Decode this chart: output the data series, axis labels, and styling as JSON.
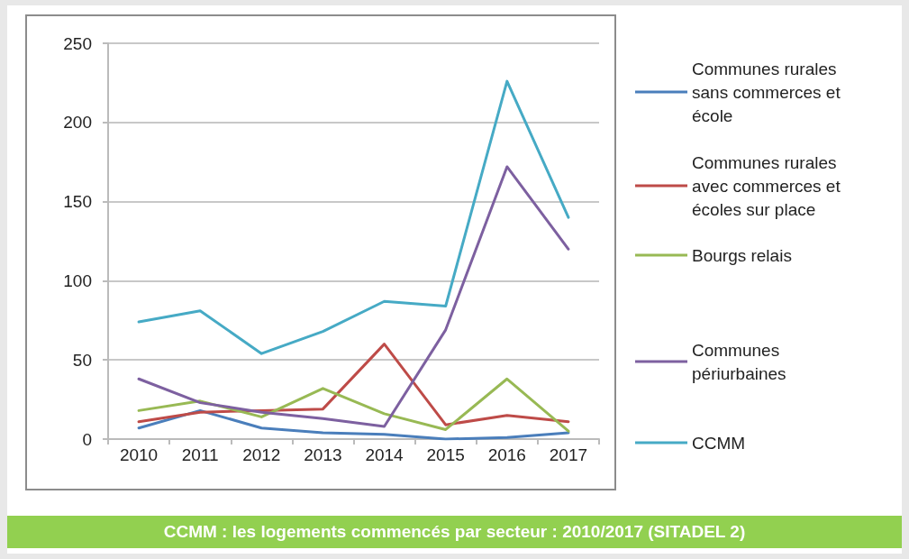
{
  "chart_data": {
    "type": "line",
    "categories": [
      "2010",
      "2011",
      "2012",
      "2013",
      "2014",
      "2015",
      "2016",
      "2017"
    ],
    "series": [
      {
        "name": "Communes rurales sans commerces et école",
        "color": "#4a7ebb",
        "values": [
          7,
          18,
          7,
          4,
          3,
          0,
          1,
          4
        ]
      },
      {
        "name": "Communes rurales avec commerces et écoles sur place",
        "color": "#be4b48",
        "values": [
          11,
          17,
          18,
          19,
          60,
          9,
          15,
          11
        ]
      },
      {
        "name": "Bourgs relais",
        "color": "#98b954",
        "values": [
          18,
          24,
          14,
          32,
          16,
          6,
          38,
          5
        ]
      },
      {
        "name": "Communes périurbaines",
        "color": "#7d60a0",
        "values": [
          38,
          23,
          17,
          13,
          8,
          69,
          172,
          120
        ]
      },
      {
        "name": "CCMM",
        "color": "#46aac5",
        "values": [
          74,
          81,
          54,
          68,
          87,
          84,
          226,
          140
        ]
      }
    ],
    "ylim": [
      0,
      250
    ],
    "yticks": [
      0,
      50,
      100,
      150,
      200,
      250
    ],
    "grid": "y",
    "legend": "right",
    "marker": "none",
    "line_style": "solid",
    "annotations": [
      "CCMM : les logements commencés par secteur : 2010/2017 (SITADEL 2)"
    ]
  }
}
